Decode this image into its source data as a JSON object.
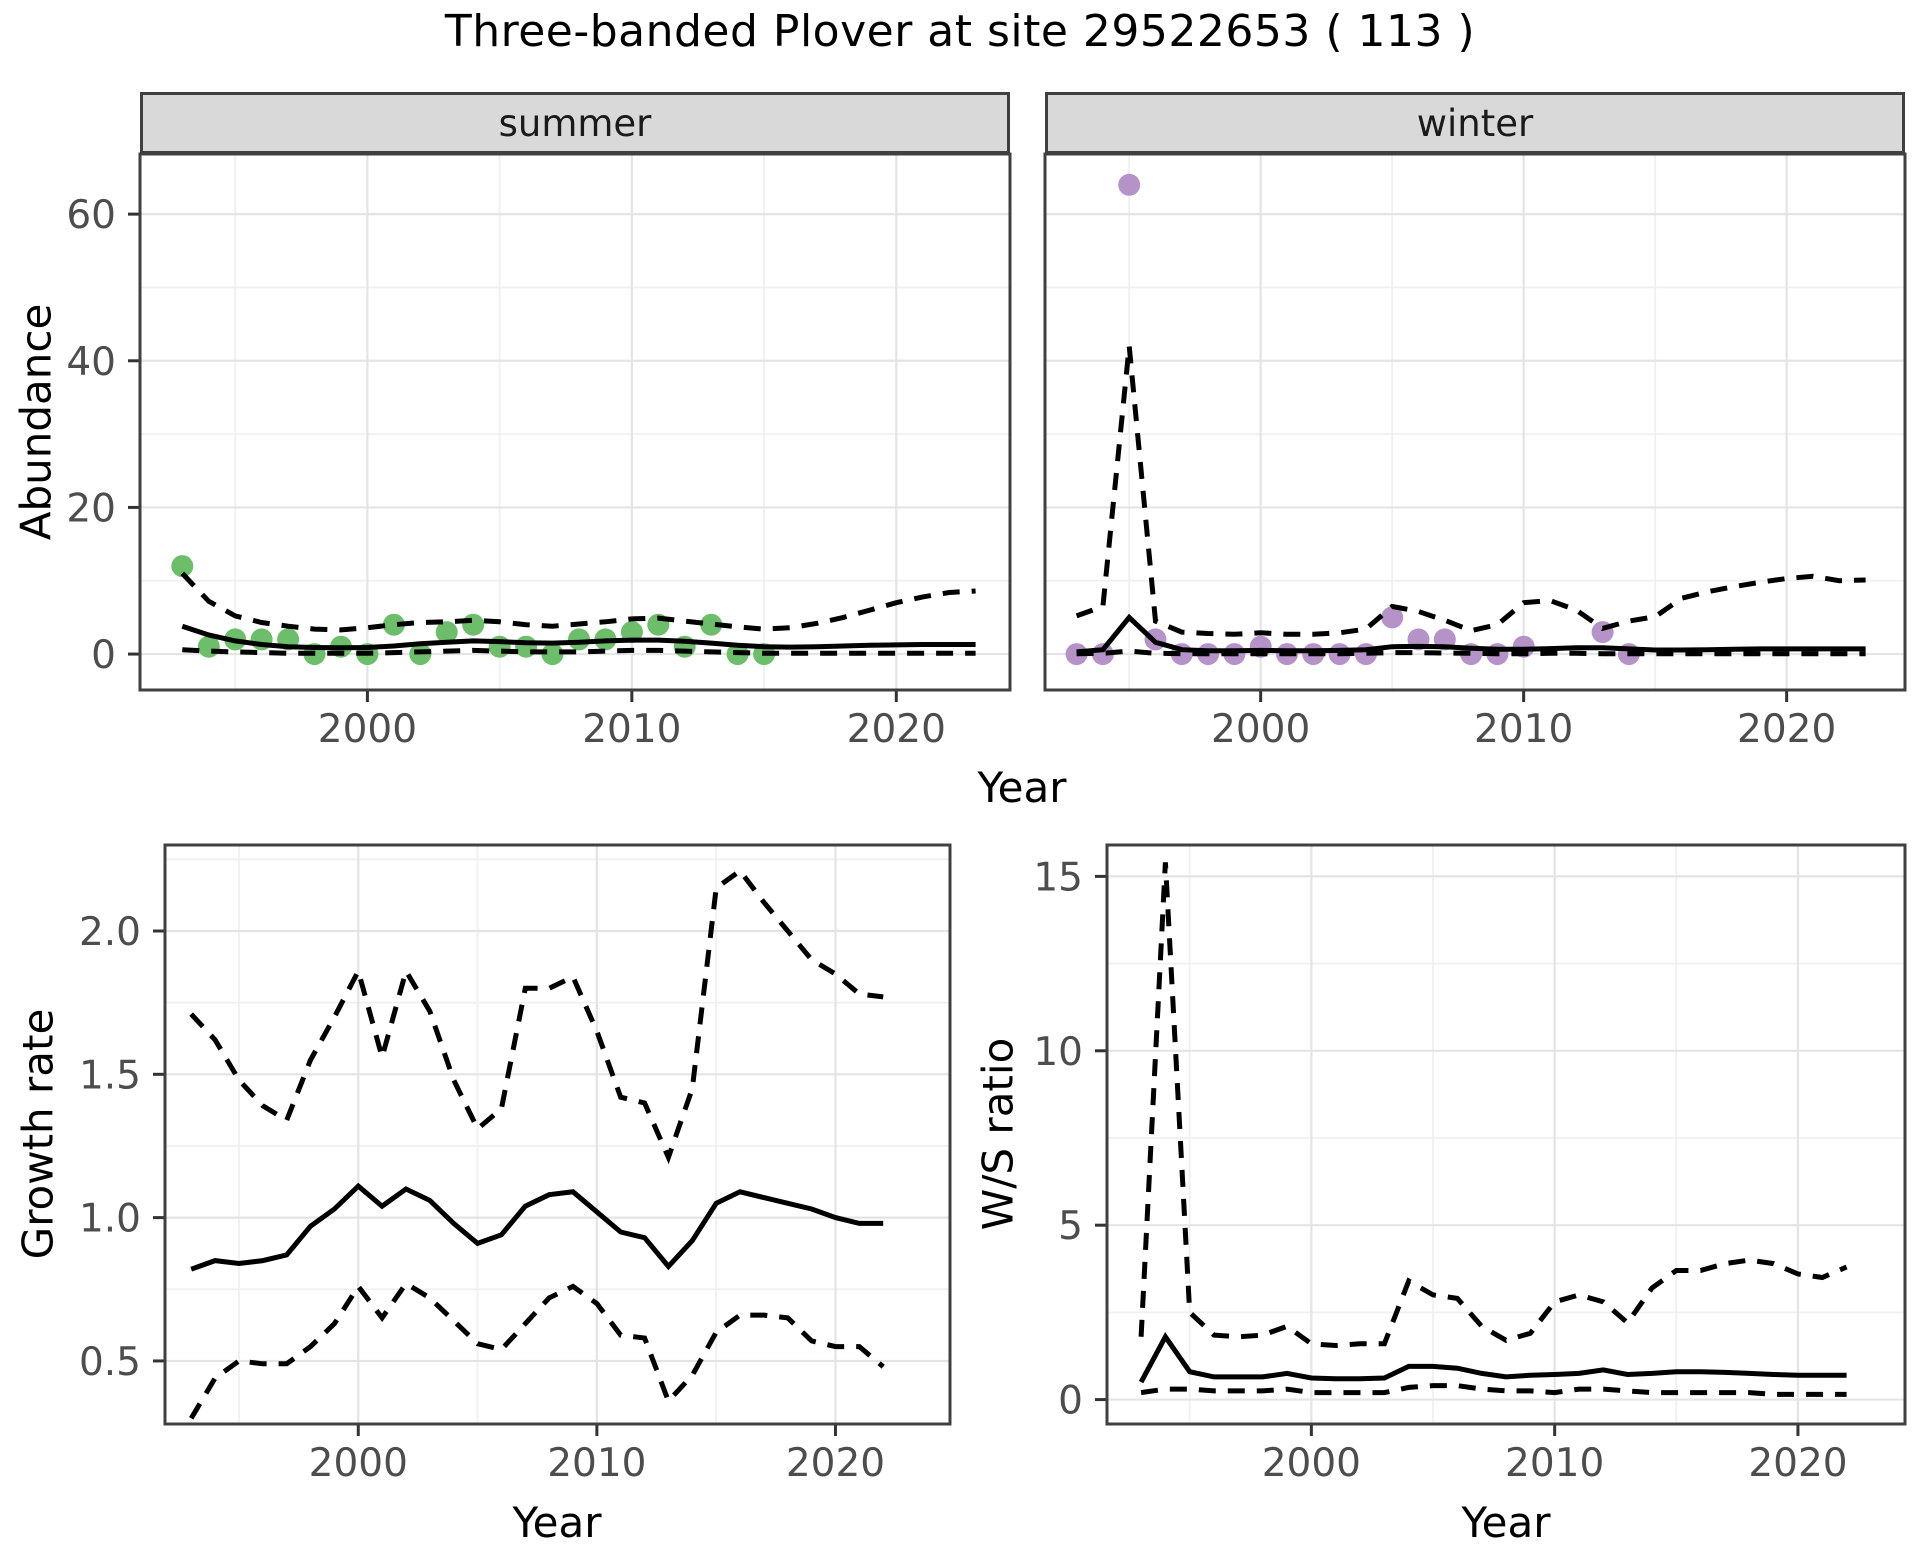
{
  "title": "Three-banded Plover at site 29522653 ( 113 )",
  "labels": {
    "abundance": "Abundance",
    "year": "Year",
    "growth": "Growth rate",
    "ws": "W/S ratio"
  },
  "colors": {
    "summer_point": "#6dbe6a",
    "winter_point": "#b593c8",
    "line": "#000000",
    "grid_major": "#e4e4e4",
    "grid_minor": "#f0f0f0",
    "panel_border": "#404040",
    "strip_bg": "#d9d9d9",
    "axis": "#333333",
    "tick_text": "#4d4d4d"
  },
  "chart_data": [
    {
      "id": "abundance-summer",
      "type": "scatter",
      "facet_label": "summer",
      "xlabel": "Year",
      "ylabel": "Abundance",
      "xlim": [
        1991.4,
        2024.3
      ],
      "ylim": [
        -4.9,
        68.2
      ],
      "xticks": [
        2000,
        2010,
        2020
      ],
      "xticklabels": [
        "2000",
        "2010",
        "2020"
      ],
      "yticks": [
        0,
        20,
        40,
        60
      ],
      "yticklabels": [
        "0",
        "20",
        "40",
        "60"
      ],
      "grid": true,
      "legend": "none",
      "series": [
        {
          "name": "observed-counts",
          "kind": "points",
          "color": "#6dbe6a",
          "x": [
            1993,
            1994,
            1995,
            1996,
            1997,
            1998,
            1999,
            2000,
            2001,
            2002,
            2003,
            2004,
            2005,
            2006,
            2007,
            2008,
            2009,
            2010,
            2011,
            2012,
            2013,
            2014,
            2015
          ],
          "y": [
            12,
            1,
            2,
            2,
            2,
            0,
            1,
            0,
            4,
            0,
            3,
            4,
            1,
            1,
            0,
            2,
            2,
            3,
            4,
            1,
            4,
            0,
            0
          ]
        },
        {
          "name": "estimate",
          "kind": "line",
          "dash": false,
          "x": [
            1993,
            1994,
            1995,
            1996,
            1997,
            1998,
            1999,
            2000,
            2001,
            2002,
            2003,
            2004,
            2005,
            2006,
            2007,
            2008,
            2009,
            2010,
            2011,
            2012,
            2013,
            2014,
            2015,
            2016,
            2017,
            2018,
            2019,
            2020,
            2021,
            2022,
            2023
          ],
          "y": [
            3.8,
            2.6,
            1.8,
            1.3,
            1.0,
            0.9,
            0.85,
            0.9,
            1.1,
            1.4,
            1.6,
            1.8,
            1.7,
            1.55,
            1.5,
            1.6,
            1.8,
            1.9,
            1.9,
            1.75,
            1.5,
            1.2,
            1.0,
            0.95,
            1.0,
            1.1,
            1.2,
            1.25,
            1.3,
            1.3,
            1.3
          ]
        },
        {
          "name": "upper-ci",
          "kind": "line",
          "dash": true,
          "x": [
            1993,
            1994,
            1995,
            1996,
            1997,
            1998,
            1999,
            2000,
            2001,
            2002,
            2003,
            2004,
            2005,
            2006,
            2007,
            2008,
            2009,
            2010,
            2011,
            2012,
            2013,
            2014,
            2015,
            2016,
            2017,
            2018,
            2019,
            2020,
            2021,
            2022,
            2023
          ],
          "y": [
            11,
            7.2,
            5.2,
            4.3,
            3.8,
            3.4,
            3.3,
            3.6,
            4.0,
            4.3,
            4.4,
            4.6,
            4.4,
            4.0,
            3.8,
            4.1,
            4.4,
            4.8,
            4.9,
            4.5,
            4.1,
            3.7,
            3.4,
            3.6,
            4.2,
            5.0,
            6.0,
            7.0,
            7.8,
            8.4,
            8.6
          ]
        },
        {
          "name": "lower-ci",
          "kind": "line",
          "dash": true,
          "x": [
            1993,
            1994,
            1995,
            1996,
            1997,
            1998,
            1999,
            2000,
            2001,
            2002,
            2003,
            2004,
            2005,
            2006,
            2007,
            2008,
            2009,
            2010,
            2011,
            2012,
            2013,
            2014,
            2015,
            2016,
            2017,
            2018,
            2019,
            2020,
            2021,
            2022,
            2023
          ],
          "y": [
            0.6,
            0.4,
            0.3,
            0.2,
            0.1,
            0.1,
            0.1,
            0.1,
            0.2,
            0.3,
            0.4,
            0.5,
            0.4,
            0.3,
            0.3,
            0.3,
            0.4,
            0.5,
            0.5,
            0.4,
            0.3,
            0.2,
            0.1,
            0.1,
            0.1,
            0.1,
            0.1,
            0.1,
            0.1,
            0.1,
            0.1
          ]
        }
      ]
    },
    {
      "id": "abundance-winter",
      "type": "scatter",
      "facet_label": "winter",
      "xlabel": "Year",
      "ylabel": "Abundance",
      "xlim": [
        1991.8,
        2024.5
      ],
      "ylim": [
        -4.9,
        68.2
      ],
      "xticks": [
        2000,
        2010,
        2020
      ],
      "xticklabels": [
        "2000",
        "2010",
        "2020"
      ],
      "yticks": [
        0,
        20,
        40,
        60
      ],
      "grid": true,
      "legend": "none",
      "series": [
        {
          "name": "observed-counts",
          "kind": "points",
          "color": "#b593c8",
          "x": [
            1993,
            1994,
            1995,
            1996,
            1997,
            1998,
            1999,
            2000,
            2001,
            2002,
            2003,
            2004,
            2005,
            2006,
            2007,
            2008,
            2009,
            2010,
            2013,
            2014
          ],
          "y": [
            0,
            0,
            64,
            2,
            0,
            0,
            0,
            1,
            0,
            0,
            0,
            0,
            5,
            2,
            2,
            0,
            0,
            1,
            3,
            0
          ]
        },
        {
          "name": "estimate",
          "kind": "line",
          "dash": false,
          "x": [
            1993,
            1994,
            1995,
            1996,
            1997,
            1998,
            1999,
            2000,
            2001,
            2002,
            2003,
            2004,
            2005,
            2006,
            2007,
            2008,
            2009,
            2010,
            2011,
            2012,
            2013,
            2014,
            2015,
            2016,
            2017,
            2018,
            2019,
            2020,
            2021,
            2022,
            2023
          ],
          "y": [
            0.3,
            0.6,
            5.0,
            1.6,
            0.6,
            0.45,
            0.45,
            0.5,
            0.45,
            0.45,
            0.5,
            0.6,
            1.0,
            1.05,
            1.0,
            0.8,
            0.65,
            0.65,
            0.75,
            0.85,
            0.85,
            0.7,
            0.55,
            0.55,
            0.6,
            0.65,
            0.7,
            0.7,
            0.7,
            0.7,
            0.7
          ]
        },
        {
          "name": "upper-ci",
          "kind": "line",
          "dash": true,
          "x": [
            1993,
            1994,
            1995,
            1996,
            1997,
            1998,
            1999,
            2000,
            2001,
            2002,
            2003,
            2004,
            2005,
            2006,
            2007,
            2008,
            2009,
            2010,
            2011,
            2012,
            2013,
            2014,
            2015,
            2016,
            2017,
            2018,
            2019,
            2020,
            2021,
            2022,
            2023
          ],
          "y": [
            5.2,
            6.5,
            42,
            4.5,
            3.0,
            2.8,
            2.7,
            2.9,
            2.7,
            2.7,
            2.9,
            3.4,
            6.5,
            5.8,
            4.6,
            3.2,
            4.0,
            7.0,
            7.3,
            6.0,
            3.5,
            4.5,
            5.1,
            7.6,
            8.5,
            9.2,
            9.8,
            10.3,
            10.6,
            10.0,
            10.1
          ]
        },
        {
          "name": "lower-ci",
          "kind": "line",
          "dash": true,
          "x": [
            1993,
            1994,
            1995,
            1996,
            1997,
            1998,
            1999,
            2000,
            2001,
            2002,
            2003,
            2004,
            2005,
            2006,
            2007,
            2008,
            2009,
            2010,
            2011,
            2012,
            2013,
            2014,
            2015,
            2016,
            2017,
            2018,
            2019,
            2020,
            2021,
            2022,
            2023
          ],
          "y": [
            0.05,
            0.1,
            0.4,
            0.1,
            0.05,
            0.05,
            0.05,
            0.05,
            0.05,
            0.05,
            0.05,
            0.1,
            0.2,
            0.2,
            0.15,
            0.1,
            0.05,
            0.05,
            0.1,
            0.1,
            0.05,
            0.05,
            0.05,
            0.05,
            0.05,
            0.05,
            0.05,
            0.05,
            0.05,
            0.05,
            0.05
          ]
        }
      ]
    },
    {
      "id": "growth-rate",
      "type": "line",
      "facet_label": "",
      "xlabel": "Year",
      "ylabel": "Growth rate",
      "xlim": [
        1991.9,
        2024.8
      ],
      "ylim": [
        0.28,
        2.3
      ],
      "xticks": [
        2000,
        2010,
        2020
      ],
      "xticklabels": [
        "2000",
        "2010",
        "2020"
      ],
      "yticks": [
        0.5,
        1.0,
        1.5,
        2.0
      ],
      "yticklabels": [
        "0.5",
        "1.0",
        "1.5",
        "2.0"
      ],
      "grid": true,
      "legend": "none",
      "series": [
        {
          "name": "estimate",
          "kind": "line",
          "dash": false,
          "x": [
            1993,
            1994,
            1995,
            1996,
            1997,
            1998,
            1999,
            2000,
            2001,
            2002,
            2003,
            2004,
            2005,
            2006,
            2007,
            2008,
            2009,
            2010,
            2011,
            2012,
            2013,
            2014,
            2015,
            2016,
            2017,
            2018,
            2019,
            2020,
            2021,
            2022
          ],
          "y": [
            0.82,
            0.85,
            0.84,
            0.85,
            0.87,
            0.97,
            1.03,
            1.11,
            1.04,
            1.1,
            1.06,
            0.98,
            0.91,
            0.94,
            1.04,
            1.08,
            1.09,
            1.02,
            0.95,
            0.93,
            0.83,
            0.92,
            1.05,
            1.09,
            1.07,
            1.05,
            1.03,
            1.0,
            0.98,
            0.98
          ]
        },
        {
          "name": "upper-ci",
          "kind": "line",
          "dash": true,
          "x": [
            1993,
            1994,
            1995,
            1996,
            1997,
            1998,
            1999,
            2000,
            2001,
            2002,
            2003,
            2004,
            2005,
            2006,
            2007,
            2008,
            2009,
            2010,
            2011,
            2012,
            2013,
            2014,
            2015,
            2016,
            2017,
            2018,
            2019,
            2020,
            2021,
            2022
          ],
          "y": [
            1.71,
            1.62,
            1.48,
            1.39,
            1.34,
            1.55,
            1.7,
            1.86,
            1.56,
            1.86,
            1.72,
            1.48,
            1.31,
            1.38,
            1.8,
            1.8,
            1.84,
            1.65,
            1.42,
            1.4,
            1.21,
            1.45,
            2.15,
            2.21,
            2.1,
            2.0,
            1.9,
            1.85,
            1.78,
            1.77
          ]
        },
        {
          "name": "lower-ci",
          "kind": "line",
          "dash": true,
          "x": [
            1993,
            1994,
            1995,
            1996,
            1997,
            1998,
            1999,
            2000,
            2001,
            2002,
            2003,
            2004,
            2005,
            2006,
            2007,
            2008,
            2009,
            2010,
            2011,
            2012,
            2013,
            2014,
            2015,
            2016,
            2017,
            2018,
            2019,
            2020,
            2021,
            2022
          ],
          "y": [
            0.3,
            0.44,
            0.5,
            0.49,
            0.49,
            0.55,
            0.63,
            0.76,
            0.65,
            0.77,
            0.72,
            0.64,
            0.56,
            0.54,
            0.63,
            0.72,
            0.76,
            0.7,
            0.59,
            0.58,
            0.36,
            0.45,
            0.6,
            0.66,
            0.66,
            0.65,
            0.57,
            0.55,
            0.55,
            0.48
          ]
        }
      ]
    },
    {
      "id": "ws-ratio",
      "type": "line",
      "facet_label": "",
      "xlabel": "Year",
      "ylabel": "W/S ratio",
      "xlim": [
        1991.6,
        2024.4
      ],
      "ylim": [
        -0.7,
        15.9
      ],
      "xticks": [
        2000,
        2010,
        2020
      ],
      "xticklabels": [
        "2000",
        "2010",
        "2020"
      ],
      "yticks": [
        0,
        5,
        10,
        15
      ],
      "yticklabels": [
        "0",
        "5",
        "10",
        "15"
      ],
      "grid": true,
      "legend": "none",
      "series": [
        {
          "name": "estimate",
          "kind": "line",
          "dash": false,
          "x": [
            1993,
            1994,
            1995,
            1996,
            1997,
            1998,
            1999,
            2000,
            2001,
            2002,
            2003,
            2004,
            2005,
            2006,
            2007,
            2008,
            2009,
            2010,
            2011,
            2012,
            2013,
            2014,
            2015,
            2016,
            2017,
            2018,
            2019,
            2020,
            2021,
            2022
          ],
          "y": [
            0.5,
            1.8,
            0.8,
            0.65,
            0.65,
            0.65,
            0.75,
            0.62,
            0.6,
            0.6,
            0.62,
            0.95,
            0.95,
            0.9,
            0.75,
            0.65,
            0.7,
            0.72,
            0.75,
            0.85,
            0.72,
            0.75,
            0.8,
            0.8,
            0.78,
            0.75,
            0.72,
            0.7,
            0.7,
            0.7
          ]
        },
        {
          "name": "upper-ci",
          "kind": "line",
          "dash": true,
          "x": [
            1993,
            1994,
            1995,
            1996,
            1997,
            1998,
            1999,
            2000,
            2001,
            2002,
            2003,
            2004,
            2005,
            2006,
            2007,
            2008,
            2009,
            2010,
            2011,
            2012,
            2013,
            2014,
            2015,
            2016,
            2017,
            2018,
            2019,
            2020,
            2021,
            2022
          ],
          "y": [
            1.8,
            15.4,
            2.5,
            1.85,
            1.8,
            1.85,
            2.1,
            1.6,
            1.55,
            1.6,
            1.6,
            3.4,
            3.0,
            2.9,
            2.1,
            1.7,
            1.9,
            2.8,
            3.0,
            2.8,
            2.2,
            3.2,
            3.7,
            3.7,
            3.9,
            4.0,
            3.9,
            3.6,
            3.5,
            3.8
          ]
        },
        {
          "name": "lower-ci",
          "kind": "line",
          "dash": true,
          "x": [
            1993,
            1994,
            1995,
            1996,
            1997,
            1998,
            1999,
            2000,
            2001,
            2002,
            2003,
            2004,
            2005,
            2006,
            2007,
            2008,
            2009,
            2010,
            2011,
            2012,
            2013,
            2014,
            2015,
            2016,
            2017,
            2018,
            2019,
            2020,
            2021,
            2022
          ],
          "y": [
            0.2,
            0.3,
            0.3,
            0.25,
            0.25,
            0.25,
            0.3,
            0.2,
            0.2,
            0.2,
            0.2,
            0.35,
            0.4,
            0.4,
            0.3,
            0.25,
            0.25,
            0.2,
            0.3,
            0.3,
            0.25,
            0.2,
            0.2,
            0.2,
            0.2,
            0.2,
            0.15,
            0.15,
            0.15,
            0.15
          ]
        }
      ]
    }
  ]
}
